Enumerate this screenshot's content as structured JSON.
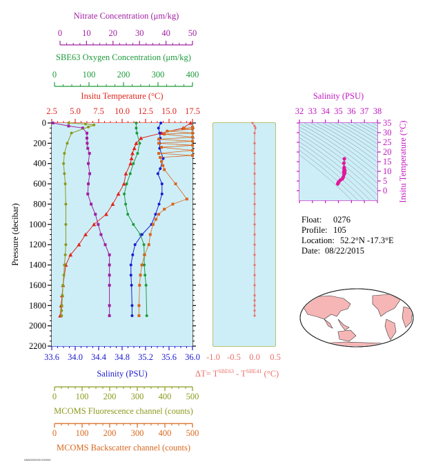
{
  "colors": {
    "nitrate": "#a020a0",
    "oxygen": "#1e9a3c",
    "temperature": "#e0241c",
    "salinity": "#1a1ad0",
    "fluorescence": "#8a9a1a",
    "backscatter": "#d8661c",
    "delta_t": "#e8706a",
    "panel_bg": "#cdeef7",
    "ts_marker": "#e0189a",
    "ts_axis": "#c018c0"
  },
  "info": {
    "float_label": "Float:",
    "float_value": "0276",
    "profile_label": "Profile:",
    "profile_value": "105",
    "location_label": "Location:",
    "location_value": "52.2°N  -17.3°E",
    "date_label": "Date:",
    "date_value": "08/22/2015"
  },
  "footer_tag": "ANN0000000.000000",
  "chart_data": [
    {
      "id": "main-profile",
      "type": "line",
      "ylabel": "Pressure (decibar)",
      "ylim": [
        2200,
        0
      ],
      "y_ticks": [
        "0",
        "200",
        "400",
        "600",
        "800",
        "1000",
        "1200",
        "1400",
        "1600",
        "1800",
        "2000",
        "2200"
      ],
      "grid": false,
      "axes": [
        {
          "key": "nitrate",
          "label": "Nitrate Concentration (μm/kg)",
          "position": "top",
          "range": [
            0,
            50
          ],
          "ticks": [
            "0",
            "10",
            "20",
            "30",
            "40",
            "50"
          ]
        },
        {
          "key": "oxygen",
          "label": "SBE63 Oxygen Concentration (μm/kg)",
          "position": "top",
          "range": [
            0,
            400
          ],
          "ticks": [
            "0",
            "100",
            "200",
            "300",
            "400"
          ]
        },
        {
          "key": "temperature",
          "label": "Insitu Temperature (°C)",
          "position": "top",
          "range": [
            2.5,
            17.5
          ],
          "ticks": [
            "2.5",
            "5.0",
            "7.5",
            "10.0",
            "12.5",
            "15.0",
            "17.5"
          ]
        },
        {
          "key": "salinity",
          "label": "Salinity (PSU)",
          "position": "bottom",
          "range": [
            33.6,
            36.0
          ],
          "ticks": [
            "33.6",
            "34.0",
            "34.4",
            "34.8",
            "35.2",
            "35.6",
            "36.0"
          ]
        },
        {
          "key": "fluorescence",
          "label": "MCOMS Fluorescence channel (counts)",
          "position": "bottom",
          "range": [
            0,
            500
          ],
          "ticks": [
            "0",
            "100",
            "200",
            "300",
            "400",
            "500"
          ]
        },
        {
          "key": "backscatter",
          "label": "MCOMS Backscatter channel (counts)",
          "position": "bottom",
          "range": [
            0,
            500
          ],
          "ticks": [
            "0",
            "100",
            "200",
            "300",
            "400",
            "500"
          ]
        }
      ],
      "series": [
        {
          "key": "nitrate",
          "marker": "square",
          "x": [
            0.4,
            6,
            11,
            12.5,
            12.5,
            12.6,
            12.8,
            13.4,
            13.0,
            13.5,
            13.0,
            12.8,
            14.0,
            15.5,
            16.5,
            17.5,
            19.0,
            20.5,
            20.5,
            20.5,
            20.5,
            20.5,
            20.5
          ],
          "y": [
            0,
            30,
            50,
            100,
            150,
            200,
            250,
            300,
            400,
            500,
            600,
            700,
            800,
            900,
            1000,
            1100,
            1200,
            1300,
            1400,
            1500,
            1600,
            1800,
            1900
          ]
        },
        {
          "key": "oxygen",
          "marker": "circle",
          "x": [
            240,
            240,
            242,
            250,
            244,
            232,
            223,
            213,
            206,
            210,
            216,
            232,
            252,
            262,
            263,
            263,
            265,
            268,
            270
          ],
          "y": [
            0,
            50,
            100,
            200,
            300,
            400,
            500,
            600,
            700,
            800,
            900,
            1000,
            1100,
            1200,
            1300,
            1400,
            1500,
            1600,
            1900
          ]
        },
        {
          "key": "temperature",
          "marker": "triangle",
          "x": [
            17.3,
            16.5,
            14.2,
            12.0,
            11.5,
            11.3,
            11.1,
            11.0,
            10.9,
            10.4,
            10.2,
            9.6,
            9.0,
            8.3,
            7.0,
            6.1,
            5.4,
            4.5,
            4.0,
            3.7,
            3.6,
            3.5,
            3.4
          ],
          "y": [
            0,
            50,
            100,
            150,
            200,
            250,
            300,
            350,
            400,
            500,
            600,
            700,
            800,
            900,
            1000,
            1100,
            1200,
            1300,
            1400,
            1600,
            1700,
            1800,
            1900
          ]
        },
        {
          "key": "salinity",
          "marker": "circle",
          "x": [
            35.46,
            35.42,
            35.44,
            35.45,
            35.44,
            35.44,
            35.5,
            35.45,
            35.41,
            35.48,
            35.48,
            35.43,
            35.37,
            35.3,
            35.14,
            35.02,
            34.98,
            34.95,
            34.95,
            34.96,
            34.97,
            34.97
          ],
          "y": [
            0,
            50,
            100,
            150,
            200,
            250,
            350,
            450,
            500,
            600,
            700,
            800,
            900,
            1000,
            1100,
            1200,
            1300,
            1400,
            1500,
            1600,
            1800,
            1900
          ]
        },
        {
          "key": "fluorescence",
          "marker": "circle",
          "x": [
            60,
            120,
            150,
            130,
            70,
            55,
            45,
            42,
            45,
            48,
            50,
            50,
            50,
            48,
            45,
            43,
            40,
            38,
            36,
            35,
            35
          ],
          "y": [
            0,
            10,
            20,
            40,
            100,
            200,
            300,
            400,
            500,
            600,
            800,
            1000,
            1200,
            1300,
            1400,
            1500,
            1600,
            1700,
            1800,
            1850,
            1900
          ]
        },
        {
          "key": "backscatter",
          "marker": "square",
          "x": [
            500,
            470,
            500,
            410,
            500,
            400,
            500,
            380,
            500,
            380,
            500,
            390,
            500,
            380,
            500,
            385,
            390,
            395,
            400,
            440,
            480,
            430,
            400,
            380,
            370,
            360,
            350,
            345,
            330,
            320,
            315,
            312,
            310,
            310
          ],
          "y": [
            40,
            55,
            60,
            80,
            100,
            110,
            140,
            160,
            180,
            200,
            220,
            240,
            270,
            300,
            320,
            340,
            380,
            420,
            460,
            600,
            750,
            800,
            850,
            900,
            950,
            1000,
            1100,
            1200,
            1300,
            1400,
            1500,
            1600,
            1800,
            1900
          ]
        }
      ]
    },
    {
      "id": "delta-t",
      "type": "line",
      "xlabel": "ΔT= T^SBE63 - T^SBE41 (°C)",
      "xlabel_parts": {
        "a": "ΔT= T",
        "sup1": "SBE63",
        "b": " - T",
        "sup2": "SBE41",
        "c": " (°C)"
      },
      "xlim": [
        -1.0,
        0.5
      ],
      "x_ticks": [
        "-1.0",
        "-0.5",
        "0.0",
        "0.5"
      ],
      "ylim": [
        2200,
        0
      ],
      "series": [
        {
          "name": "",
          "marker": "circle",
          "x": [
            -0.05,
            0.0,
            0.02,
            0.0,
            0.0,
            0.0,
            0.0,
            0.0,
            0.0,
            0.0,
            0.0,
            0.0,
            0.0,
            0.0,
            0.0,
            0.0,
            0.0,
            0.0,
            0.0,
            0.0,
            0.0,
            0.0,
            0.0,
            0.0
          ],
          "y": [
            0,
            30,
            50,
            100,
            200,
            300,
            400,
            500,
            600,
            700,
            800,
            900,
            1000,
            1100,
            1200,
            1300,
            1400,
            1500,
            1600,
            1700,
            1750,
            1800,
            1850,
            1900
          ]
        }
      ]
    },
    {
      "id": "ts-diagram",
      "type": "scatter",
      "xlabel": "Salinity (PSU)",
      "ylabel": "Insitu Temperature (°C)",
      "xlim": [
        32,
        38
      ],
      "x_ticks": [
        "32",
        "33",
        "34",
        "35",
        "36",
        "37",
        "38"
      ],
      "ylim": [
        -5,
        35
      ],
      "y_ticks": [
        "0",
        "5",
        "10",
        "15",
        "20",
        "25",
        "30",
        "35"
      ],
      "points": {
        "x": [
          35.46,
          35.42,
          35.44,
          35.45,
          35.44,
          35.45,
          35.5,
          35.45,
          35.41,
          35.48,
          35.43,
          35.37,
          35.3,
          35.14,
          35.02,
          34.98,
          34.95
        ],
        "y": [
          16.5,
          14.2,
          12.0,
          11.5,
          11.0,
          10.9,
          10.4,
          10.2,
          9.6,
          9.0,
          8.3,
          7.0,
          6.1,
          5.4,
          4.5,
          4.0,
          3.5
        ]
      }
    }
  ]
}
